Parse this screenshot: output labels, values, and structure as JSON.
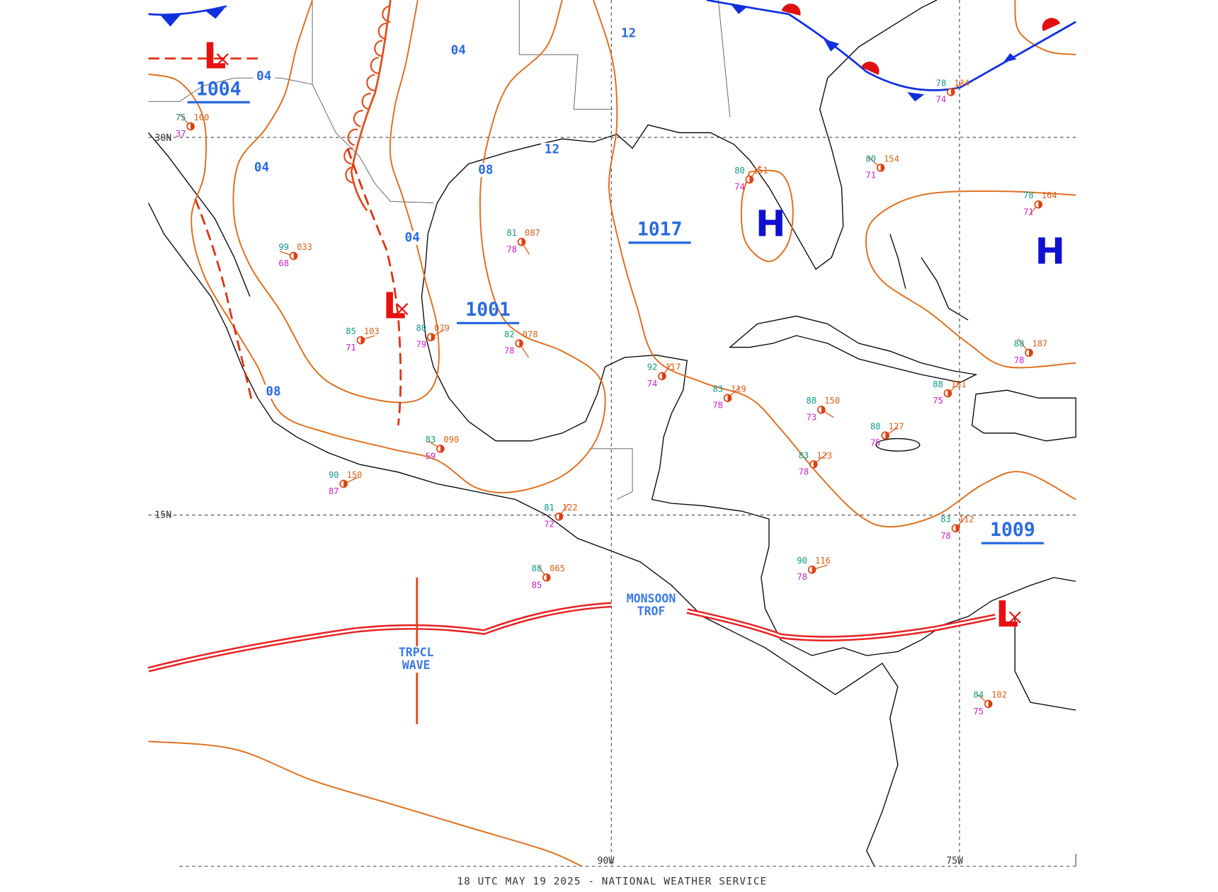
{
  "footer": "18 UTC MAY 19 2025 - NATIONAL WEATHER SERVICE",
  "grid_labels": {
    "lat": [
      "30N",
      "15N"
    ],
    "lon": [
      "90W",
      "75W"
    ]
  },
  "pressure_centers": [
    {
      "symbol": "L",
      "pressure": "1004"
    },
    {
      "symbol": "L",
      "pressure": "1001"
    },
    {
      "symbol": "H",
      "pressure": "1017"
    },
    {
      "symbol": "H"
    },
    {
      "symbol": "L",
      "pressure": "1009"
    }
  ],
  "isobar_labels": [
    "04",
    "04",
    "04",
    "04",
    "08",
    "08",
    "12",
    "12"
  ],
  "features": {
    "monsoon_trough": [
      "MONSOON",
      "TROF"
    ],
    "tropical_wave": [
      "TRPCL",
      "WAVE"
    ]
  },
  "stations": [
    {
      "t": "88",
      "p": "187",
      "td": "78"
    },
    {
      "t": "88",
      "p": "127",
      "td": "75"
    },
    {
      "t": "83",
      "p": "123",
      "td": "78"
    },
    {
      "t": "83",
      "p": "112",
      "td": "78"
    },
    {
      "t": "90",
      "p": "116",
      "td": "78"
    },
    {
      "t": "88",
      "p": "065",
      "td": "85"
    },
    {
      "t": "82",
      "p": "078",
      "td": "78"
    },
    {
      "t": "80",
      "p": "079",
      "td": "79"
    },
    {
      "t": "92",
      "p": "117",
      "td": "74"
    },
    {
      "t": "83",
      "p": "119",
      "td": "78"
    },
    {
      "t": "81",
      "p": "087",
      "td": "78"
    },
    {
      "t": "80",
      "p": "154",
      "td": "71"
    },
    {
      "t": "78",
      "p": "164",
      "td": "71"
    },
    {
      "t": "80",
      "p": "151",
      "td": "74"
    },
    {
      "t": "88",
      "p": "150",
      "td": "73"
    },
    {
      "t": "84",
      "p": "102",
      "td": "75"
    },
    {
      "t": "90",
      "p": "150",
      "td": "87"
    },
    {
      "t": "83",
      "p": "090",
      "td": "59"
    },
    {
      "t": "81",
      "p": "122",
      "td": "72"
    },
    {
      "t": "85",
      "p": "103",
      "td": "71"
    },
    {
      "t": "99",
      "p": "033",
      "td": "68"
    },
    {
      "t": "75",
      "p": "100",
      "td": "37"
    },
    {
      "t": "78",
      "p": "134",
      "td": "74"
    },
    {
      "t": "88",
      "p": "151",
      "td": "75"
    }
  ]
}
